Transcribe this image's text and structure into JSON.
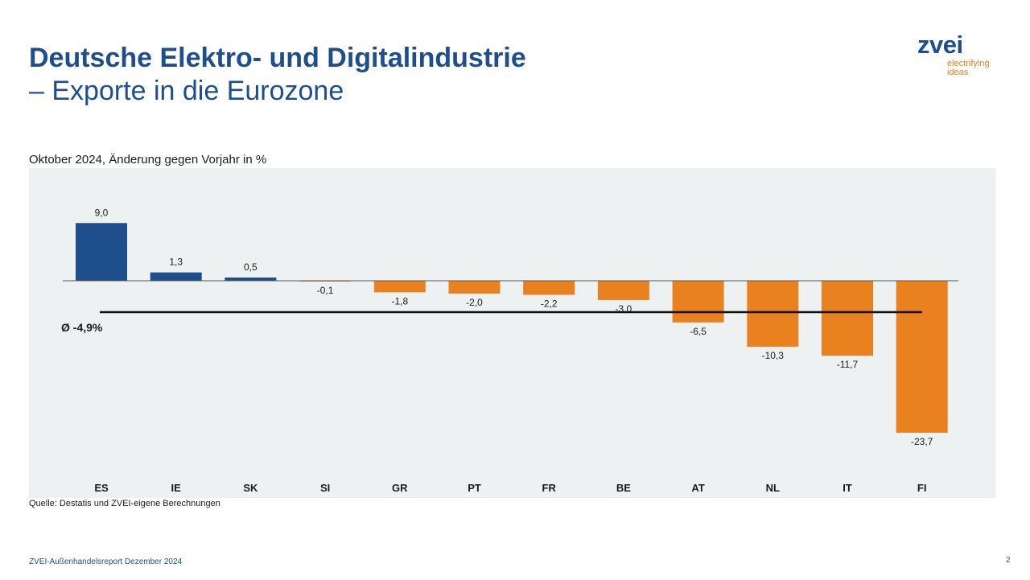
{
  "slide": {
    "title_line1": "Deutsche Elektro- und Digitalindustrie",
    "title_line2": "– Exporte in die Eurozone",
    "logo_word": "zvei",
    "logo_tagline_1": "electrifying",
    "logo_tagline_2": "ideas",
    "source": "Quelle: Destatis und ZVEI-eigene Berechnungen",
    "footer": "ZVEI-Außenhandelsreport Dezember 2024",
    "page_number": "2"
  },
  "colors": {
    "positive": "#1f4e8c",
    "negative": "#e9811f",
    "plot_background": "#eef1f2",
    "title": "#1f4e8c",
    "average_line": "#111111"
  },
  "chart_data": {
    "type": "bar",
    "subtitle": "Oktober 2024, Änderung gegen Vorjahr in %",
    "categories": [
      "ES",
      "IE",
      "SK",
      "SI",
      "GR",
      "PT",
      "FR",
      "BE",
      "AT",
      "NL",
      "IT",
      "FI"
    ],
    "values": [
      9.0,
      1.3,
      0.5,
      -0.1,
      -1.8,
      -2.0,
      -2.2,
      -3.0,
      -6.5,
      -10.3,
      -11.7,
      -23.7
    ],
    "value_labels": [
      "9,0",
      "1,3",
      "0,5",
      "-0,1",
      "-1,8",
      "-2,0",
      "-2,2",
      "-3,0",
      "-6,5",
      "-10,3",
      "-11,7",
      "-23,7"
    ],
    "average": {
      "value": -4.9,
      "label": "Ø -4,9%"
    },
    "ylim": [
      -25,
      15
    ],
    "grid": false,
    "legend": "none"
  }
}
